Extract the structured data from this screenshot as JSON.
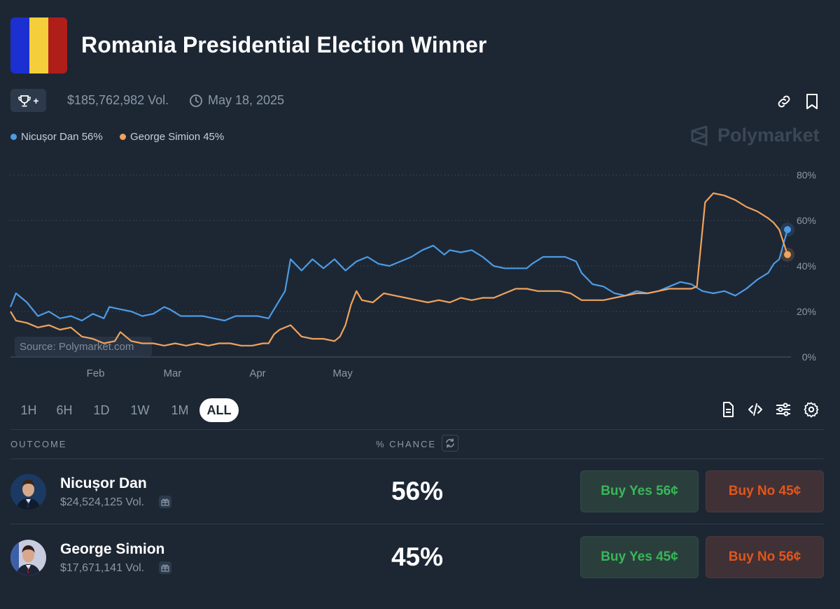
{
  "header": {
    "title": "Romania Presidential Election Winner",
    "flag_colors": [
      "#1c2fd0",
      "#f5cf3b",
      "#b01e1a"
    ],
    "volume": "$185,762,982 Vol.",
    "end_date": "May 18, 2025",
    "trophy_label": "+"
  },
  "legend": [
    {
      "label": "Nicușor Dan 56%",
      "color": "#4d9be3"
    },
    {
      "label": "George Simion 45%",
      "color": "#f0a35c"
    }
  ],
  "brand": {
    "name": "Polymarket"
  },
  "source_label": "Source: Polymarket.com",
  "chart_data": {
    "type": "line",
    "x_ticks": [
      "Feb",
      "Mar",
      "Apr",
      "May"
    ],
    "y_ticks": [
      "80%",
      "60%",
      "40%",
      "20%",
      "0%"
    ],
    "ylim": [
      0,
      80
    ],
    "grid": true,
    "series": [
      {
        "name": "Nicușor Dan",
        "color": "#4d9be3",
        "values": [
          [
            0,
            22
          ],
          [
            2,
            28
          ],
          [
            6,
            24
          ],
          [
            10,
            18
          ],
          [
            14,
            20
          ],
          [
            18,
            17
          ],
          [
            22,
            18
          ],
          [
            26,
            16
          ],
          [
            30,
            19
          ],
          [
            34,
            17
          ],
          [
            36,
            22
          ],
          [
            40,
            21
          ],
          [
            44,
            20
          ],
          [
            48,
            18
          ],
          [
            52,
            19
          ],
          [
            56,
            22
          ],
          [
            58,
            21
          ],
          [
            62,
            18
          ],
          [
            66,
            18
          ],
          [
            70,
            18
          ],
          [
            74,
            17
          ],
          [
            78,
            16
          ],
          [
            82,
            18
          ],
          [
            86,
            18
          ],
          [
            90,
            18
          ],
          [
            94,
            17
          ],
          [
            96,
            21
          ],
          [
            100,
            29
          ],
          [
            102,
            43
          ],
          [
            106,
            38
          ],
          [
            110,
            43
          ],
          [
            114,
            39
          ],
          [
            118,
            43
          ],
          [
            122,
            38
          ],
          [
            126,
            42
          ],
          [
            130,
            44
          ],
          [
            134,
            41
          ],
          [
            138,
            40
          ],
          [
            142,
            42
          ],
          [
            146,
            44
          ],
          [
            150,
            47
          ],
          [
            154,
            49
          ],
          [
            158,
            45
          ],
          [
            160,
            47
          ],
          [
            164,
            46
          ],
          [
            168,
            47
          ],
          [
            172,
            44
          ],
          [
            176,
            40
          ],
          [
            180,
            39
          ],
          [
            184,
            39
          ],
          [
            188,
            39
          ],
          [
            190,
            41
          ],
          [
            194,
            44
          ],
          [
            198,
            44
          ],
          [
            202,
            44
          ],
          [
            206,
            42
          ],
          [
            208,
            37
          ],
          [
            212,
            32
          ],
          [
            216,
            31
          ],
          [
            220,
            28
          ],
          [
            224,
            27
          ],
          [
            228,
            29
          ],
          [
            232,
            28
          ],
          [
            236,
            29
          ],
          [
            240,
            31
          ],
          [
            244,
            33
          ],
          [
            248,
            32
          ],
          [
            252,
            29
          ],
          [
            256,
            28
          ],
          [
            260,
            29
          ],
          [
            264,
            27
          ],
          [
            268,
            30
          ],
          [
            272,
            34
          ],
          [
            276,
            37
          ],
          [
            278,
            41
          ],
          [
            280,
            43
          ],
          [
            283,
            56
          ]
        ]
      },
      {
        "name": "George Simion",
        "color": "#f0a35c",
        "values": [
          [
            0,
            20
          ],
          [
            2,
            16
          ],
          [
            6,
            15
          ],
          [
            10,
            13
          ],
          [
            14,
            14
          ],
          [
            18,
            12
          ],
          [
            22,
            13
          ],
          [
            26,
            9
          ],
          [
            30,
            8
          ],
          [
            34,
            6
          ],
          [
            38,
            7
          ],
          [
            40,
            11
          ],
          [
            44,
            7
          ],
          [
            48,
            6
          ],
          [
            52,
            6
          ],
          [
            56,
            5
          ],
          [
            60,
            6
          ],
          [
            64,
            5
          ],
          [
            68,
            6
          ],
          [
            72,
            5
          ],
          [
            76,
            6
          ],
          [
            80,
            6
          ],
          [
            84,
            5
          ],
          [
            88,
            5
          ],
          [
            92,
            6
          ],
          [
            94,
            6
          ],
          [
            96,
            10
          ],
          [
            98,
            12
          ],
          [
            102,
            14
          ],
          [
            106,
            9
          ],
          [
            110,
            8
          ],
          [
            114,
            8
          ],
          [
            118,
            7
          ],
          [
            120,
            9
          ],
          [
            122,
            14
          ],
          [
            124,
            23
          ],
          [
            126,
            29
          ],
          [
            128,
            25
          ],
          [
            132,
            24
          ],
          [
            136,
            28
          ],
          [
            140,
            27
          ],
          [
            144,
            26
          ],
          [
            148,
            25
          ],
          [
            152,
            24
          ],
          [
            156,
            25
          ],
          [
            160,
            24
          ],
          [
            164,
            26
          ],
          [
            168,
            25
          ],
          [
            172,
            26
          ],
          [
            176,
            26
          ],
          [
            180,
            28
          ],
          [
            184,
            30
          ],
          [
            188,
            30
          ],
          [
            192,
            29
          ],
          [
            196,
            29
          ],
          [
            200,
            29
          ],
          [
            204,
            28
          ],
          [
            208,
            25
          ],
          [
            212,
            25
          ],
          [
            216,
            25
          ],
          [
            220,
            26
          ],
          [
            224,
            27
          ],
          [
            228,
            28
          ],
          [
            232,
            28
          ],
          [
            236,
            29
          ],
          [
            240,
            30
          ],
          [
            244,
            30
          ],
          [
            248,
            30
          ],
          [
            250,
            31
          ],
          [
            253,
            68
          ],
          [
            256,
            72
          ],
          [
            260,
            71
          ],
          [
            264,
            69
          ],
          [
            268,
            66
          ],
          [
            272,
            64
          ],
          [
            276,
            61
          ],
          [
            278,
            59
          ],
          [
            280,
            56
          ],
          [
            283,
            45
          ]
        ]
      }
    ]
  },
  "ranges": [
    {
      "label": "1H",
      "active": false
    },
    {
      "label": "6H",
      "active": false
    },
    {
      "label": "1D",
      "active": false
    },
    {
      "label": "1W",
      "active": false
    },
    {
      "label": "1M",
      "active": false
    },
    {
      "label": "ALL",
      "active": true
    }
  ],
  "table": {
    "col_outcome": "OUTCOME",
    "col_chance": "% CHANCE",
    "rows": [
      {
        "name": "Nicușor Dan",
        "volume": "$24,524,125 Vol.",
        "chance": "56%",
        "buy_yes": "Buy Yes 56¢",
        "buy_no": "Buy No 45¢"
      },
      {
        "name": "George Simion",
        "volume": "$17,671,141 Vol.",
        "chance": "45%",
        "buy_yes": "Buy Yes 45¢",
        "buy_no": "Buy No 56¢"
      }
    ]
  }
}
